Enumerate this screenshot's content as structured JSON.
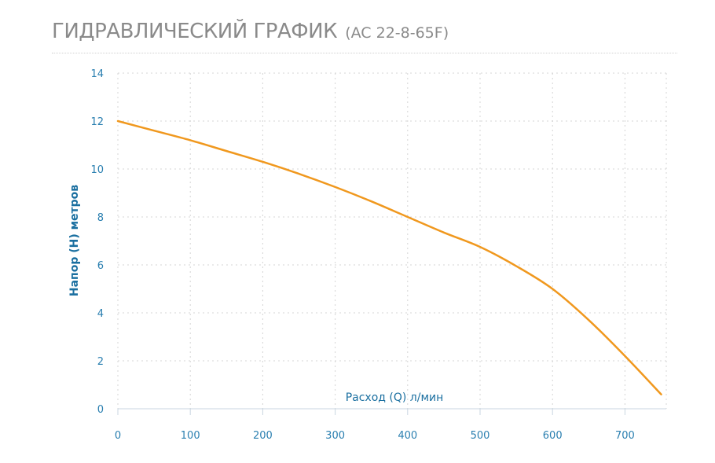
{
  "header": {
    "title": "ГИДРАВЛИЧЕСКИЙ ГРАФИК",
    "model": "(AC 22-8-65F)"
  },
  "colors": {
    "curve": "#f0981e",
    "axis_text": "#2a7fb0",
    "title_text": "#8a8a8a",
    "grid": "#d4d4d4"
  },
  "chart_data": {
    "type": "line",
    "title": "ГИДРАВЛИЧЕСКИЙ ГРАФИК (AC 22-8-65F)",
    "xlabel": "Расход (Q) л/мин",
    "ylabel": "Напор (H) метров",
    "xlim": [
      0,
      750
    ],
    "ylim": [
      0,
      14
    ],
    "xticks": [
      0,
      100,
      200,
      300,
      400,
      500,
      600,
      700
    ],
    "yticks": [
      0,
      2,
      4,
      6,
      8,
      10,
      12,
      14
    ],
    "grid": true,
    "series": [
      {
        "x": [
          0,
          50,
          100,
          150,
          200,
          250,
          300,
          350,
          400,
          450,
          500,
          550,
          600,
          650,
          700,
          750
        ],
        "y": [
          12,
          11.6,
          11.2,
          10.75,
          10.3,
          9.8,
          9.25,
          8.65,
          8.0,
          7.35,
          6.75,
          5.95,
          5.0,
          3.7,
          2.2,
          0.6
        ]
      }
    ]
  }
}
